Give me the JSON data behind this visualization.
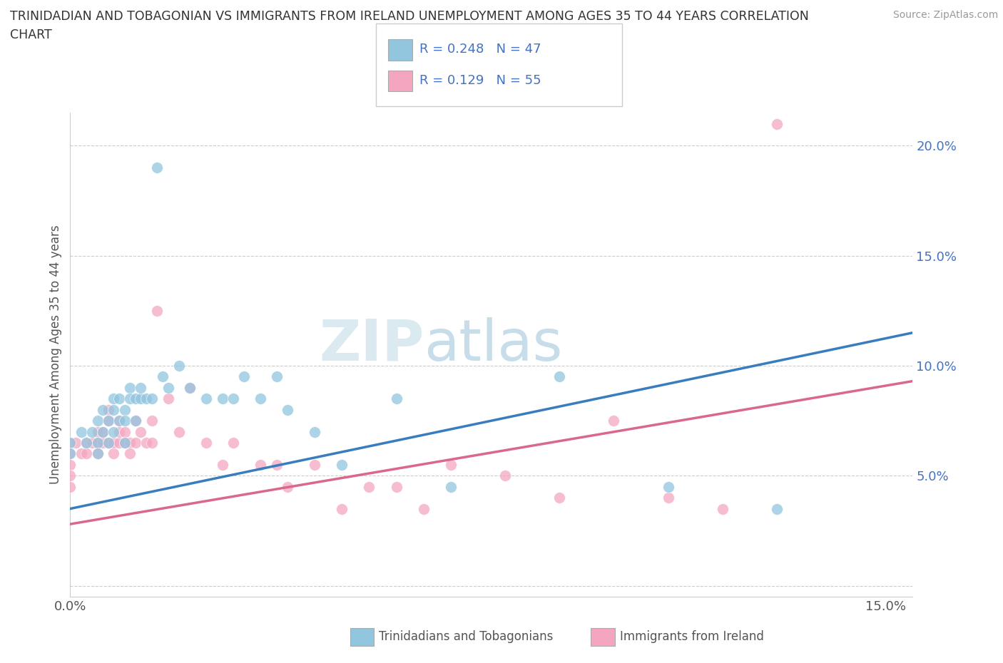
{
  "title": "TRINIDADIAN AND TOBAGONIAN VS IMMIGRANTS FROM IRELAND UNEMPLOYMENT AMONG AGES 35 TO 44 YEARS CORRELATION\nCHART",
  "source": "Source: ZipAtlas.com",
  "ylabel_label": "Unemployment Among Ages 35 to 44 years",
  "xlim": [
    0.0,
    0.155
  ],
  "ylim": [
    -0.005,
    0.215
  ],
  "blue_color": "#92c5de",
  "pink_color": "#f4a6c0",
  "blue_line_color": "#3a7dbf",
  "pink_line_color": "#d9688a",
  "grid_color": "#cccccc",
  "background_color": "#ffffff",
  "watermark_zip": "ZIP",
  "watermark_atlas": "atlas",
  "blue_line_x0": 0.0,
  "blue_line_y0": 0.035,
  "blue_line_x1": 0.155,
  "blue_line_y1": 0.115,
  "pink_line_x0": 0.0,
  "pink_line_y0": 0.028,
  "pink_line_x1": 0.155,
  "pink_line_y1": 0.093,
  "blue_scatter_x": [
    0.0,
    0.0,
    0.002,
    0.003,
    0.004,
    0.005,
    0.005,
    0.005,
    0.006,
    0.006,
    0.007,
    0.007,
    0.008,
    0.008,
    0.008,
    0.009,
    0.009,
    0.01,
    0.01,
    0.01,
    0.011,
    0.011,
    0.012,
    0.012,
    0.013,
    0.013,
    0.014,
    0.015,
    0.016,
    0.017,
    0.018,
    0.02,
    0.022,
    0.025,
    0.028,
    0.03,
    0.032,
    0.035,
    0.038,
    0.04,
    0.045,
    0.05,
    0.06,
    0.07,
    0.09,
    0.11,
    0.13
  ],
  "blue_scatter_y": [
    0.065,
    0.06,
    0.07,
    0.065,
    0.07,
    0.075,
    0.065,
    0.06,
    0.08,
    0.07,
    0.075,
    0.065,
    0.08,
    0.085,
    0.07,
    0.075,
    0.085,
    0.08,
    0.075,
    0.065,
    0.09,
    0.085,
    0.085,
    0.075,
    0.085,
    0.09,
    0.085,
    0.085,
    0.19,
    0.095,
    0.09,
    0.1,
    0.09,
    0.085,
    0.085,
    0.085,
    0.095,
    0.085,
    0.095,
    0.08,
    0.07,
    0.055,
    0.085,
    0.045,
    0.095,
    0.045,
    0.035
  ],
  "pink_scatter_x": [
    0.0,
    0.0,
    0.0,
    0.0,
    0.0,
    0.001,
    0.002,
    0.003,
    0.003,
    0.004,
    0.005,
    0.005,
    0.005,
    0.006,
    0.006,
    0.007,
    0.007,
    0.007,
    0.008,
    0.008,
    0.009,
    0.009,
    0.009,
    0.01,
    0.01,
    0.011,
    0.011,
    0.012,
    0.012,
    0.013,
    0.014,
    0.015,
    0.015,
    0.016,
    0.018,
    0.02,
    0.022,
    0.025,
    0.028,
    0.03,
    0.035,
    0.038,
    0.04,
    0.045,
    0.05,
    0.055,
    0.06,
    0.065,
    0.07,
    0.08,
    0.09,
    0.1,
    0.11,
    0.12,
    0.13
  ],
  "pink_scatter_y": [
    0.065,
    0.06,
    0.055,
    0.05,
    0.045,
    0.065,
    0.06,
    0.065,
    0.06,
    0.065,
    0.07,
    0.065,
    0.06,
    0.07,
    0.065,
    0.065,
    0.08,
    0.075,
    0.06,
    0.065,
    0.065,
    0.07,
    0.075,
    0.07,
    0.065,
    0.065,
    0.06,
    0.075,
    0.065,
    0.07,
    0.065,
    0.075,
    0.065,
    0.125,
    0.085,
    0.07,
    0.09,
    0.065,
    0.055,
    0.065,
    0.055,
    0.055,
    0.045,
    0.055,
    0.035,
    0.045,
    0.045,
    0.035,
    0.055,
    0.05,
    0.04,
    0.075,
    0.04,
    0.035,
    0.21
  ]
}
